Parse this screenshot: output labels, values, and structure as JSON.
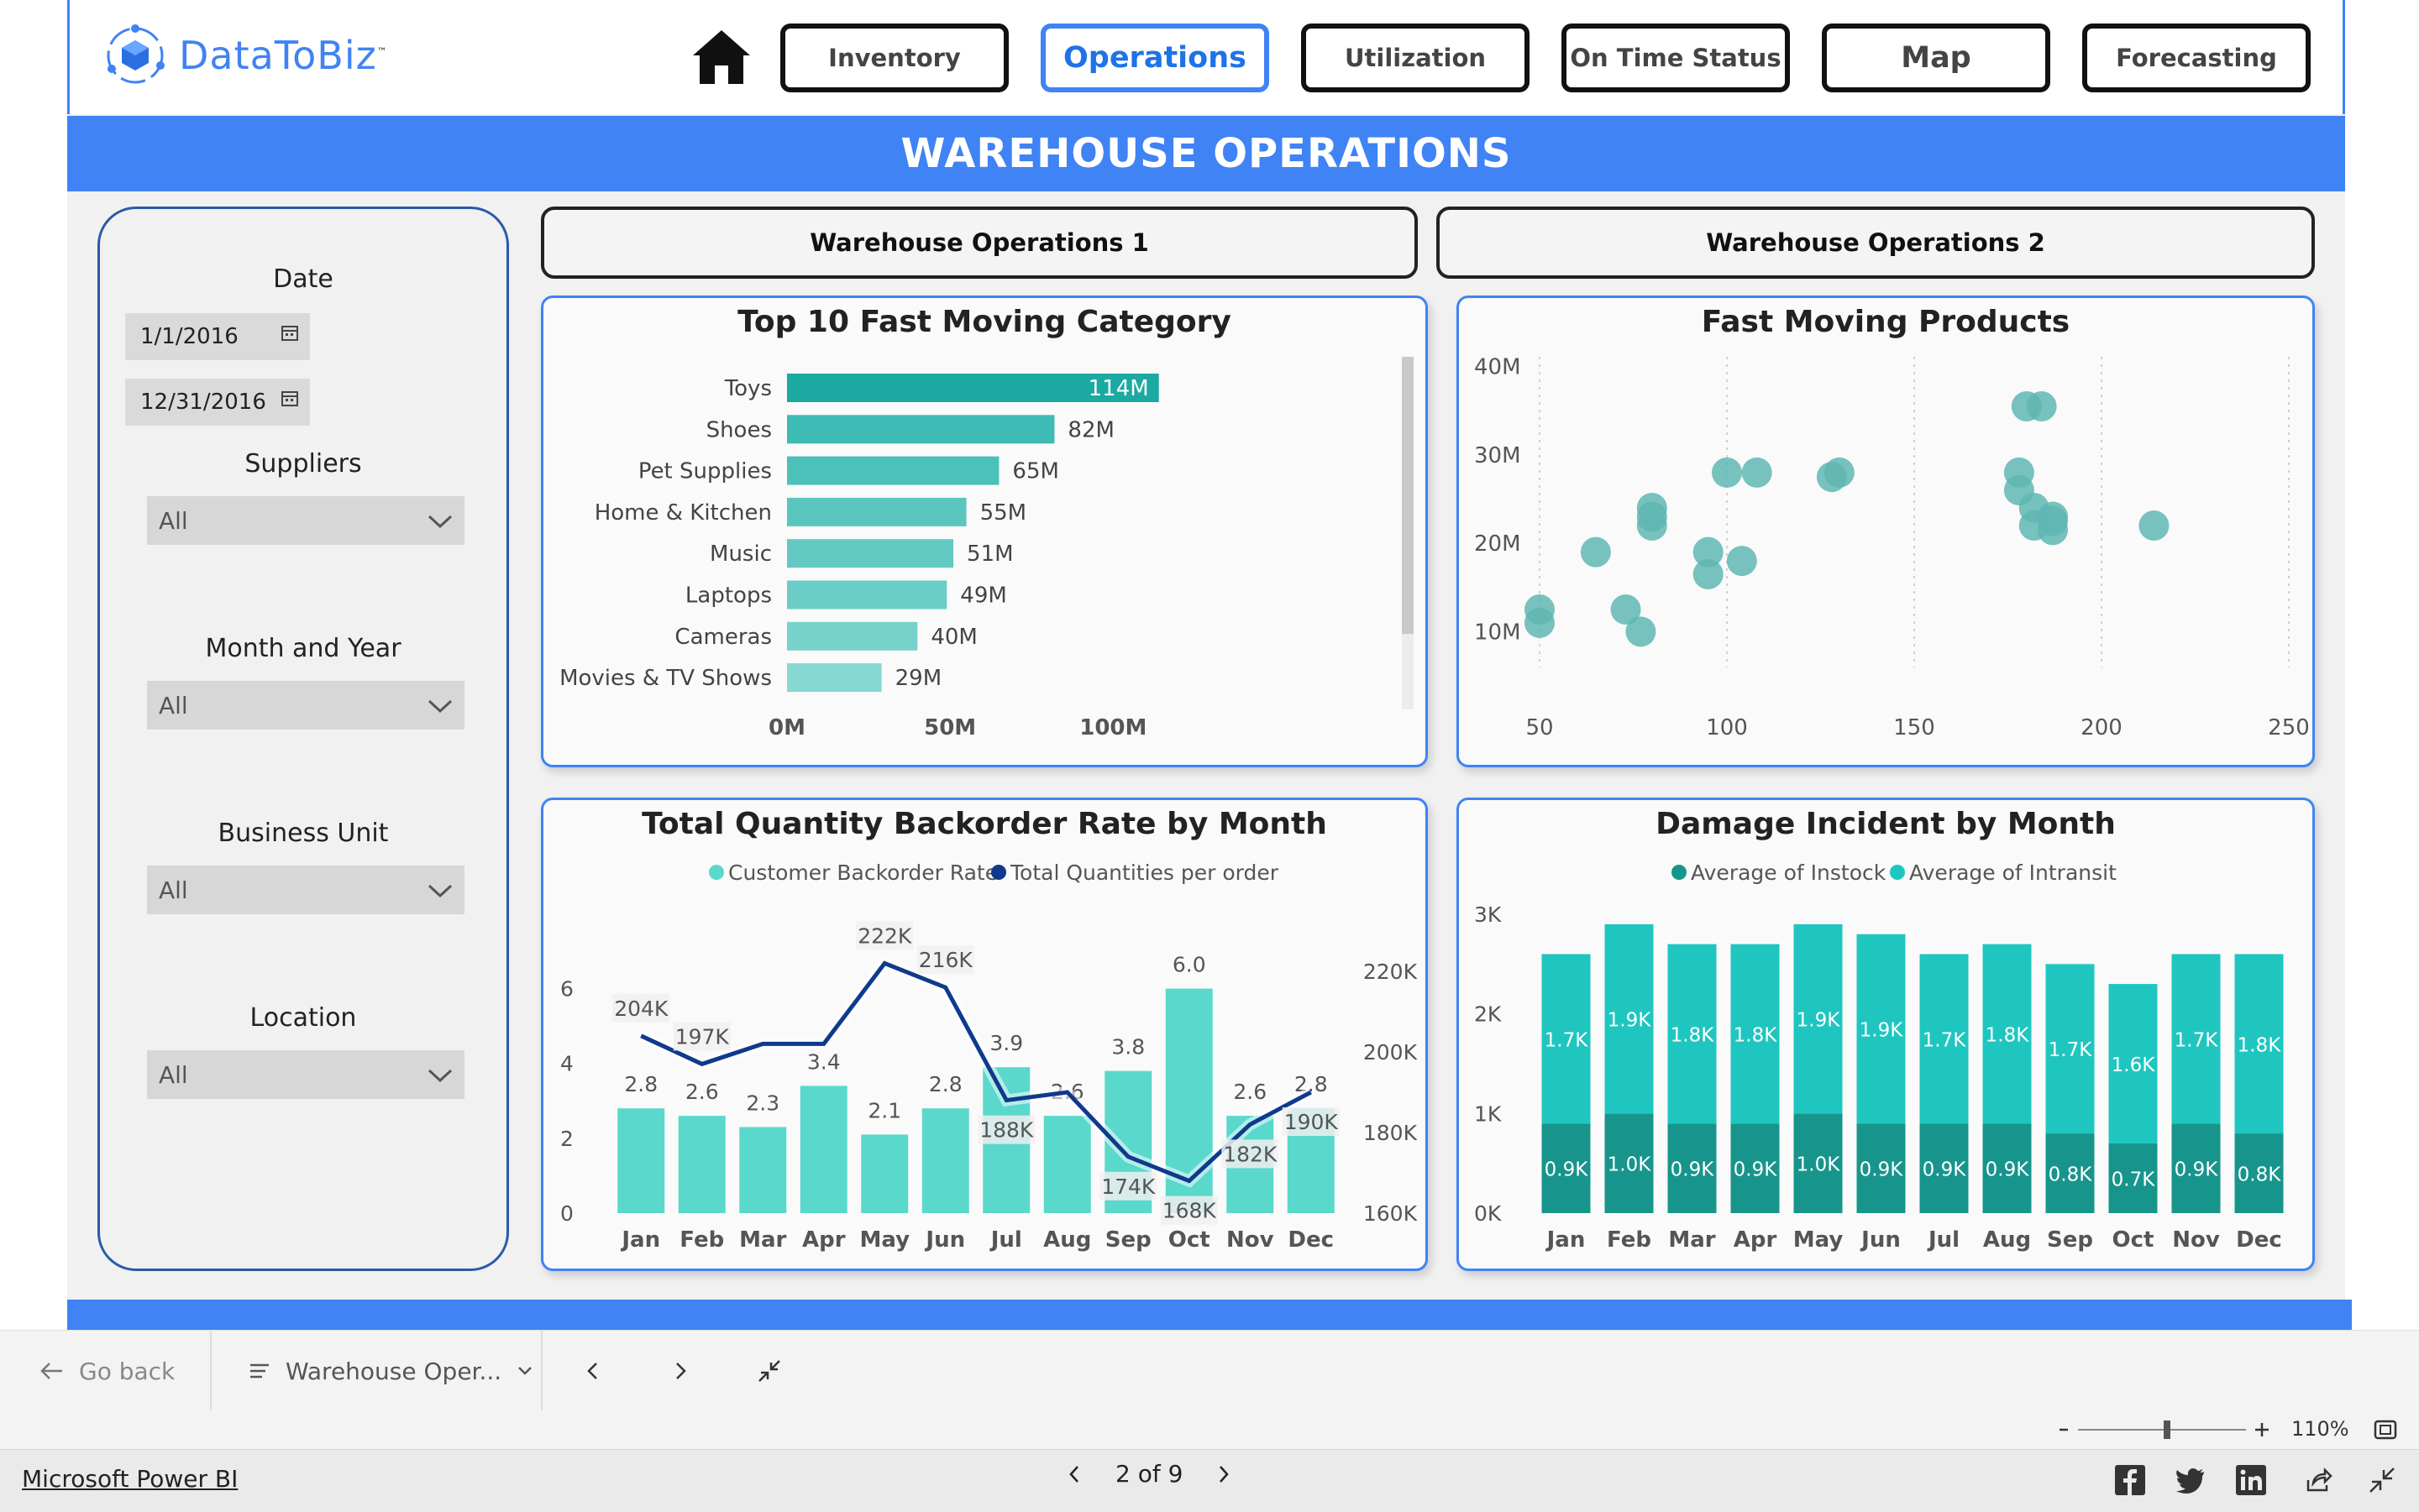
{
  "brand": {
    "name": "DataToBiz",
    "tm": "™"
  },
  "nav": {
    "home_icon": "home-icon",
    "buttons": [
      {
        "label": "Inventory",
        "active": false
      },
      {
        "label": "Operations",
        "active": true
      },
      {
        "label": "Utilization",
        "active": false
      },
      {
        "label": "On Time Status",
        "active": false
      },
      {
        "label": "Map",
        "active": false
      },
      {
        "label": "Forecasting",
        "active": false
      }
    ]
  },
  "page_title": "WAREHOUSE OPERATIONS",
  "filters": {
    "date_label": "Date",
    "date_start": "1/1/2016",
    "date_end": "12/31/2016",
    "suppliers_label": "Suppliers",
    "suppliers_value": "All",
    "month_year_label": "Month and Year",
    "month_year_value": "All",
    "business_unit_label": "Business Unit",
    "business_unit_value": "All",
    "location_label": "Location",
    "location_value": "All"
  },
  "tabs": {
    "tab1": "Warehouse Operations 1",
    "tab2": "Warehouse Operations 2"
  },
  "colors": {
    "accent": "#3f83f4",
    "teal": "#1fbdb4",
    "dark_teal": "#17958c",
    "navy": "#0f3a8c",
    "scatter": "#5fb6b3"
  },
  "chart_data": [
    {
      "type": "bar",
      "orientation": "horizontal",
      "title": "Top 10 Fast Moving Category",
      "categories": [
        "Toys",
        "Shoes",
        "Pet Supplies",
        "Home & Kitchen",
        "Music",
        "Laptops",
        "Cameras",
        "Movies & TV Shows"
      ],
      "values": [
        114,
        82,
        65,
        55,
        51,
        49,
        40,
        29
      ],
      "data_labels": [
        "114M",
        "82M",
        "65M",
        "55M",
        "51M",
        "49M",
        "40M",
        "29M"
      ],
      "x_ticks": [
        "0M",
        "50M",
        "100M"
      ],
      "xlim": [
        0,
        120
      ]
    },
    {
      "type": "scatter",
      "title": "Fast Moving Products",
      "x_ticks": [
        "50",
        "100",
        "150",
        "200",
        "250"
      ],
      "y_ticks": [
        "10M",
        "20M",
        "30M",
        "40M"
      ],
      "xlim": [
        50,
        250
      ],
      "ylim": [
        5,
        43
      ],
      "points": [
        [
          50,
          12.5
        ],
        [
          50,
          11
        ],
        [
          73,
          12.5
        ],
        [
          65,
          19
        ],
        [
          77,
          10
        ],
        [
          80,
          24
        ],
        [
          80,
          23
        ],
        [
          80,
          22
        ],
        [
          95,
          19
        ],
        [
          95,
          16.5
        ],
        [
          100,
          28
        ],
        [
          104,
          18
        ],
        [
          108,
          28
        ],
        [
          128,
          27.5
        ],
        [
          130,
          28
        ],
        [
          178,
          28
        ],
        [
          178,
          26
        ],
        [
          182,
          24
        ],
        [
          182,
          22
        ],
        [
          187,
          23
        ],
        [
          187,
          21.5
        ],
        [
          187,
          22.5
        ],
        [
          180,
          35.5
        ],
        [
          184,
          35.5
        ],
        [
          214,
          22
        ]
      ]
    },
    {
      "type": "bar",
      "title": "Total Quantity Backorder Rate by Month",
      "legend": [
        "Customer Backorder Rate",
        "Total Quantities per order"
      ],
      "categories": [
        "Jan",
        "Feb",
        "Mar",
        "Apr",
        "May",
        "Jun",
        "Jul",
        "Aug",
        "Sep",
        "Oct",
        "Nov",
        "Dec"
      ],
      "series": [
        {
          "name": "Customer Backorder Rate",
          "values": [
            2.8,
            2.6,
            2.3,
            3.4,
            2.1,
            2.8,
            3.9,
            2.6,
            3.8,
            6.0,
            2.6,
            2.8
          ],
          "labels": [
            "2.8",
            "2.6",
            "2.3",
            "3.4",
            "2.1",
            "2.8",
            "3.9",
            "2.6",
            "3.8",
            "6.0",
            "2.6",
            "2.8"
          ]
        },
        {
          "name": "Total Quantities per order",
          "values": [
            204,
            197,
            202,
            202,
            222,
            216,
            188,
            190,
            174,
            168,
            182,
            190
          ],
          "labels": [
            "204K",
            "197K",
            "",
            "",
            "222K",
            "216K",
            "188K",
            "",
            "174K",
            "168K",
            "182K",
            "190K"
          ]
        }
      ],
      "y_ticks_left": [
        "0",
        "2",
        "4",
        "6"
      ],
      "ylim_left": [
        0,
        7
      ],
      "y_ticks_right": [
        "160K",
        "180K",
        "200K",
        "220K"
      ],
      "ylim_right": [
        160,
        225
      ]
    },
    {
      "type": "bar",
      "stacked": true,
      "title": "Damage Incident by Month",
      "legend": [
        "Average of Instock",
        "Average of Intransit"
      ],
      "categories": [
        "Jan",
        "Feb",
        "Mar",
        "Apr",
        "May",
        "Jun",
        "Jul",
        "Aug",
        "Sep",
        "Oct",
        "Nov",
        "Dec"
      ],
      "series": [
        {
          "name": "Average of Instock",
          "values": [
            0.9,
            1.0,
            0.9,
            0.9,
            1.0,
            0.9,
            0.9,
            0.9,
            0.8,
            0.7,
            0.9,
            0.8
          ],
          "labels": [
            "0.9K",
            "1.0K",
            "0.9K",
            "0.9K",
            "1.0K",
            "0.9K",
            "0.9K",
            "0.9K",
            "0.8K",
            "0.7K",
            "0.9K",
            "0.8K"
          ]
        },
        {
          "name": "Average of Intransit",
          "values": [
            1.7,
            1.9,
            1.8,
            1.8,
            1.9,
            1.9,
            1.7,
            1.8,
            1.7,
            1.6,
            1.7,
            1.8
          ],
          "labels": [
            "1.7K",
            "1.9K",
            "1.8K",
            "1.8K",
            "1.9K",
            "1.9K",
            "1.7K",
            "1.8K",
            "1.7K",
            "1.6K",
            "1.7K",
            "1.8K"
          ]
        }
      ],
      "y_ticks": [
        "0K",
        "1K",
        "2K",
        "3K"
      ],
      "ylim": [
        0,
        3
      ]
    }
  ],
  "navstrip": {
    "go_back": "Go back",
    "page_menu": "Warehouse Oper...",
    "zoom": "110%"
  },
  "footer": {
    "link": "Microsoft Power BI",
    "pager": "2 of 9"
  }
}
